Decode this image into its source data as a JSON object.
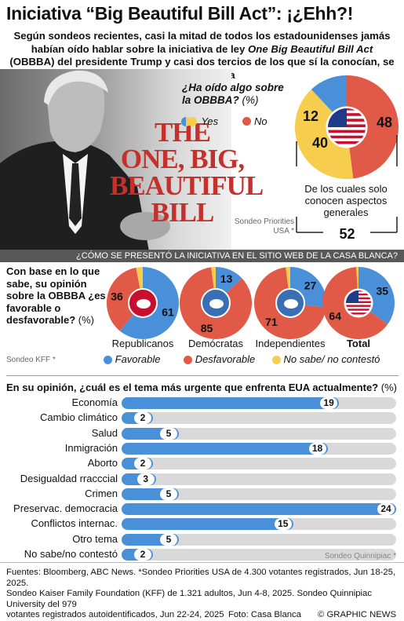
{
  "header": {
    "title": "Iniciativa “Big Beautiful Bill Act”: ¡¿Ehh?!",
    "subtitle_pre": "Según sondeos recientes, casi la mitad de todos los estadounidenses jamás habían oído hablar sobre la iniciativa de ley ",
    "subtitle_em": "One Big Beautiful Bill Act",
    "subtitle_paren": " (OBBBA) ",
    "subtitle_post": "del presidente Trump y casi dos tercios de los que sí la conocían, se oponen a ella"
  },
  "book": {
    "line1": "THE",
    "line2": "ONE, BIG,",
    "line3": "BEAUTIFUL",
    "line4": "BILL"
  },
  "colors": {
    "blue": "#4a90d9",
    "red": "#e05a47",
    "yellow": "#f6cd4c",
    "grey_bar": "#d9d9d9"
  },
  "section1": {
    "question_main": "¿Ha oído algo sobre la OBBBA?",
    "question_unit": "(%)",
    "legend_yes": "Yes",
    "legend_no": "No",
    "note": "De los cuales solo conocen aspectos generales",
    "source": "Sondeo Priorities USA *"
  },
  "section2": {
    "band_text": "¿CÓMO SE PRESENTÓ LA INICIATIVA EN EL SITIO WEB DE LA CASA BLANCA?",
    "question": "Con base en lo que sabe, su opinión sobre la OBBBA ¿es favorable o desfavorable?",
    "unit": "(%)",
    "legend_fav": "Favorable",
    "legend_unfav": "Desfavorable",
    "legend_dk": "No sabe/ no contestó",
    "source": "Sondeo KFF *"
  },
  "section3": {
    "question": "En su opinión, ¿cuál es el tema más urgente que enfrenta EUA actualmente?",
    "unit": "(%)",
    "source": "Sondeo Quinnipiac *"
  },
  "chart_data": [
    {
      "type": "pie",
      "title": "¿Ha oído algo sobre la OBBBA? (%)",
      "slices": [
        {
          "label": "Yes",
          "value": 52,
          "color": "#f6cd4c",
          "sub": [
            {
              "label": "De los cuales solo conocen aspectos generales",
              "value": 40
            },
            {
              "label": "",
              "value": 12
            }
          ]
        },
        {
          "label": "No",
          "value": 48,
          "color": "#e05a47"
        }
      ],
      "labels": {
        "sub_general": "40",
        "sub_other": "12",
        "no": "48",
        "yes_total": "52"
      }
    },
    {
      "type": "pie",
      "title": "Con base en lo que sabe, su opinión sobre la OBBBA ¿es favorable o desfavorable? (%)",
      "series_names": [
        "Favorable",
        "Desfavorable",
        "No sabe/ no contestó"
      ],
      "groups": [
        {
          "name": "Republicanos",
          "favorable": 61,
          "unfavorable": 36,
          "no_answer": 3,
          "favorable_label": "61",
          "unfavorable_label": "36",
          "no_answer_label": ""
        },
        {
          "name": "Demócratas",
          "favorable": 13,
          "unfavorable": 85,
          "no_answer": 2,
          "favorable_label": "13",
          "unfavorable_label": "85",
          "no_answer_label": ""
        },
        {
          "name": "Independientes",
          "favorable": 27,
          "unfavorable": 71,
          "no_answer": 2,
          "favorable_label": "27",
          "unfavorable_label": "71",
          "no_answer_label": ""
        },
        {
          "name": "Total",
          "favorable": 35,
          "unfavorable": 64,
          "no_answer": 1,
          "favorable_label": "35",
          "unfavorable_label": "64",
          "no_answer_label": ""
        }
      ]
    },
    {
      "type": "bar",
      "title": "En su opinión, ¿cuál es el tema más urgente que enfrenta EUA actualmente? (%)",
      "categories": [
        "Economía",
        "Cambio climático",
        "Salud",
        "Inmigración",
        "Aborto",
        "Desigualdad rracccial",
        "Crimen",
        "Preservac. democracia",
        "Conflictos internac.",
        "Otro tema",
        "No sabe/no contestó"
      ],
      "values": [
        19,
        2,
        5,
        18,
        2,
        3,
        5,
        24,
        15,
        5,
        2
      ],
      "xlim": [
        0,
        24
      ]
    }
  ],
  "footer": {
    "line1": "Fuentes: Bloomberg, ABC News. *Sondeo Priorities USA de 4.300 votantes registrados, Jun 18-25, 2025.",
    "line2": "Sondeo Kaiser Family Foundation (KFF) de 1.321 adultos, Jun 4-8, 2025. Sondeo Quinnipiac University del 979",
    "line3": "votantes registrados autoidentificados, Jun 22-24, 2025",
    "photo": "Foto: Casa Blanca",
    "brand": "© GRAPHIC NEWS"
  }
}
